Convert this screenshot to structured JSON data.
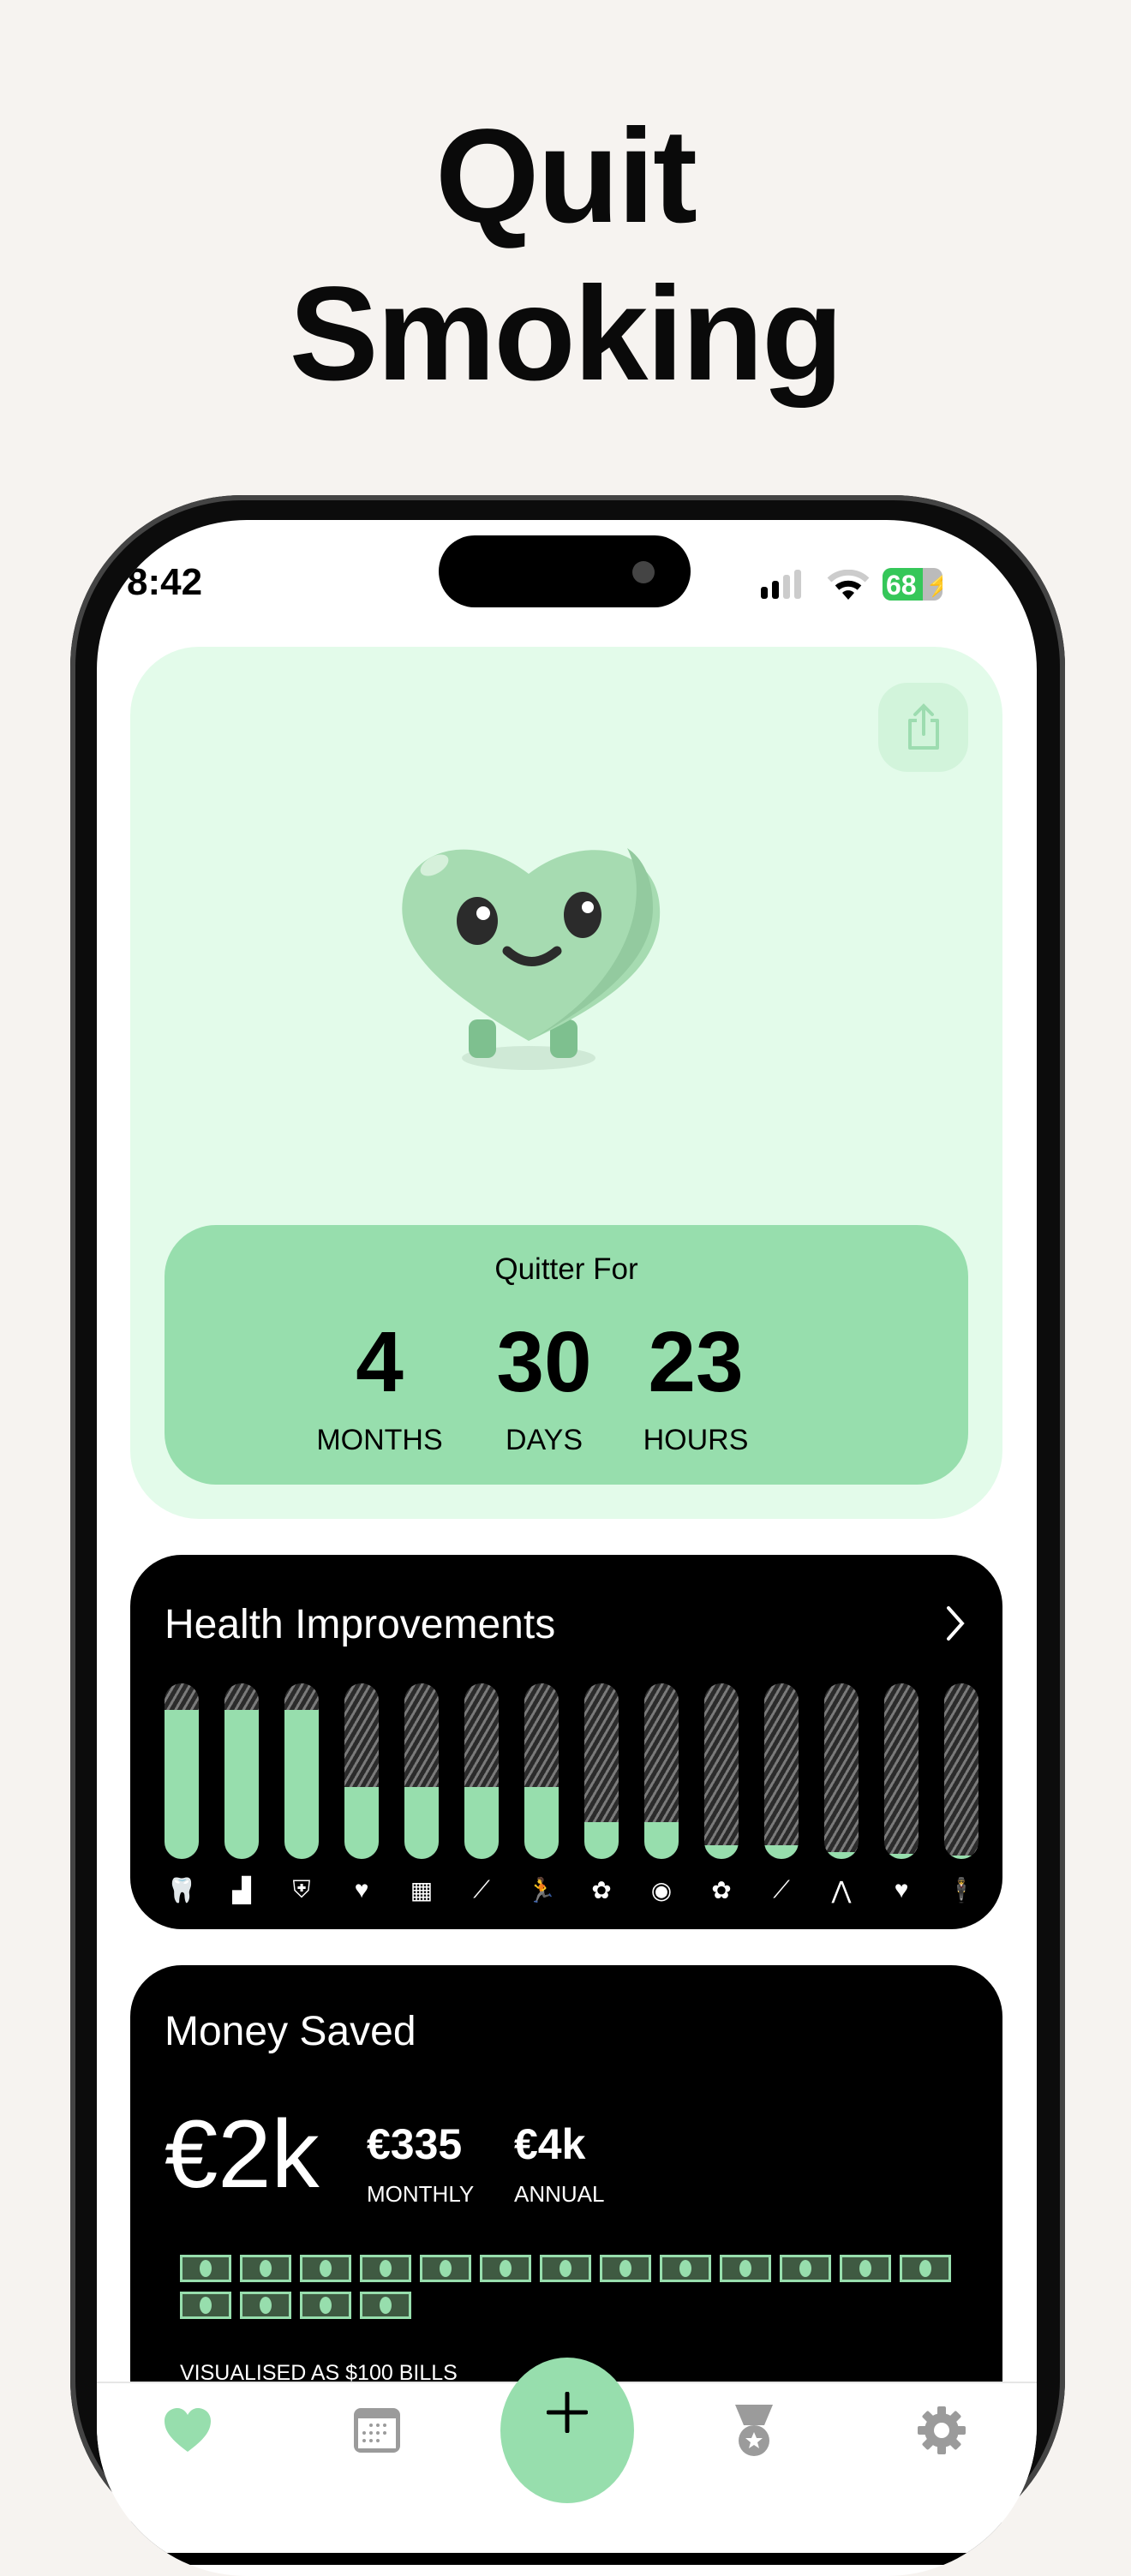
{
  "hero": {
    "line1": "Quit",
    "line2": "Smoking"
  },
  "status_bar": {
    "time": "8:42",
    "battery": "68",
    "signal_bars": 2,
    "icons": [
      "signal-icon",
      "wifi-icon",
      "battery-charging-icon"
    ]
  },
  "header": {
    "share_icon": "share-icon",
    "mascot": "heart-mascot"
  },
  "quitter": {
    "label": "Quitter For",
    "units": [
      {
        "value": "4",
        "label": "MONTHS"
      },
      {
        "value": "30",
        "label": "DAYS"
      },
      {
        "value": "23",
        "label": "HOURS"
      }
    ]
  },
  "health": {
    "title": "Health Improvements",
    "items": [
      {
        "icon": "tooth-icon",
        "progress_pct": 85
      },
      {
        "icon": "skin-icon",
        "progress_pct": 85
      },
      {
        "icon": "immune-shield-icon",
        "progress_pct": 85
      },
      {
        "icon": "heart-rate-icon",
        "progress_pct": 41
      },
      {
        "icon": "teeth-icon",
        "progress_pct": 41
      },
      {
        "icon": "bone-icon",
        "progress_pct": 41
      },
      {
        "icon": "fitness-icon",
        "progress_pct": 41
      },
      {
        "icon": "brain-icon",
        "progress_pct": 21
      },
      {
        "icon": "eye-icon",
        "progress_pct": 21
      },
      {
        "icon": "brain-icon",
        "progress_pct": 8
      },
      {
        "icon": "bone-icon",
        "progress_pct": 8
      },
      {
        "icon": "lungs-icon",
        "progress_pct": 4
      },
      {
        "icon": "heart-icon",
        "progress_pct": 3
      },
      {
        "icon": "body-icon",
        "progress_pct": 2
      }
    ],
    "colors": {
      "fill": "#97dead"
    }
  },
  "money": {
    "title": "Money Saved",
    "total": "€2k",
    "monthly_value": "€335",
    "monthly_label": "MONTHLY",
    "annual_value": "€4k",
    "annual_label": "ANNUAL",
    "bill_count": 17,
    "caption": "VISUALISED AS $100 BILLS"
  },
  "tabbar": {
    "tabs": [
      {
        "icon": "heart-icon",
        "active": true
      },
      {
        "icon": "calendar-icon",
        "active": false
      },
      {
        "icon": "plus-icon",
        "active": false
      },
      {
        "icon": "medal-icon",
        "active": false
      },
      {
        "icon": "gear-icon",
        "active": false
      }
    ],
    "colors": {
      "active": "#97dead",
      "inactive": "#9b9b9b"
    }
  }
}
